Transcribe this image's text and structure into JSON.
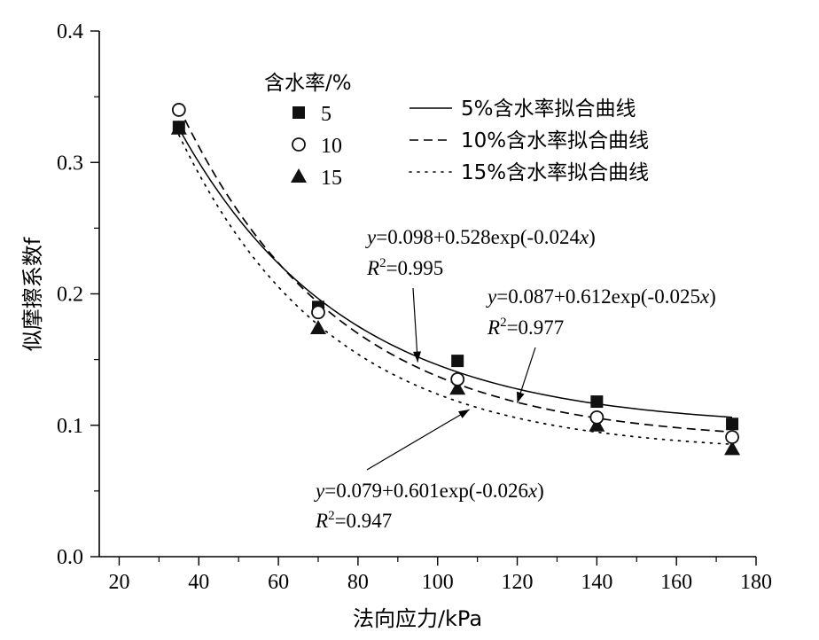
{
  "chart_data": {
    "type": "scatter",
    "title": "",
    "xlabel": "法向应力/kPa",
    "ylabel": "似摩擦系数f",
    "xlim": [
      15,
      180
    ],
    "ylim": [
      0.0,
      0.4
    ],
    "xticks": [
      20,
      40,
      60,
      80,
      100,
      120,
      140,
      160,
      180
    ],
    "yticks": [
      0.0,
      0.1,
      0.2,
      0.3,
      0.4
    ],
    "xtick_labels": [
      "20",
      "40",
      "60",
      "80",
      "100",
      "120",
      "140",
      "160",
      "180"
    ],
    "ytick_labels": [
      "0.0",
      "0.1",
      "0.2",
      "0.3",
      "0.4"
    ],
    "grid": false,
    "legend_title": "含水率/%",
    "series": [
      {
        "name": "5",
        "marker": "square",
        "x": [
          35,
          70,
          105,
          140,
          174
        ],
        "y": [
          0.327,
          0.19,
          0.149,
          0.118,
          0.101
        ]
      },
      {
        "name": "10",
        "marker": "open-circle",
        "x": [
          35,
          70,
          105,
          140,
          174
        ],
        "y": [
          0.34,
          0.186,
          0.135,
          0.106,
          0.091
        ]
      },
      {
        "name": "15",
        "marker": "triangle",
        "x": [
          35,
          70,
          105,
          140,
          174
        ],
        "y": [
          0.326,
          0.174,
          0.128,
          0.1,
          0.082
        ]
      }
    ],
    "fits": [
      {
        "name": "5%含水率拟合曲线",
        "style": "solid",
        "a": 0.098,
        "b": 0.528,
        "k": -0.024,
        "x_range": [
          35,
          174
        ]
      },
      {
        "name": "10%含水率拟合曲线",
        "style": "dashed",
        "a": 0.087,
        "b": 0.612,
        "k": -0.025,
        "x_range": [
          35,
          174
        ]
      },
      {
        "name": "15%含水率拟合曲线",
        "style": "dotted",
        "a": 0.079,
        "b": 0.601,
        "k": -0.026,
        "x_range": [
          35,
          174
        ]
      }
    ],
    "annotations": [
      {
        "eq_var": "y",
        "eq_mid": "=0.098+0.528exp(-0.024",
        "eq_x": "x",
        "eq_close": ")",
        "r_label": "R",
        "r_sup": "2",
        "r_value": "=0.995",
        "arrow_to": [
          95,
          0.148
        ]
      },
      {
        "eq_var": "y",
        "eq_mid": "=0.087+0.612exp(-0.025",
        "eq_x": "x",
        "eq_close": ")",
        "r_label": "R",
        "r_sup": "2",
        "r_value": "=0.977",
        "arrow_to": [
          120,
          0.117
        ]
      },
      {
        "eq_var": "y",
        "eq_mid": "=0.079+0.601exp(-0.026",
        "eq_x": "x",
        "eq_close": ")",
        "r_label": "R",
        "r_sup": "2",
        "r_value": "=0.947",
        "arrow_to": [
          108,
          0.112
        ]
      }
    ]
  }
}
